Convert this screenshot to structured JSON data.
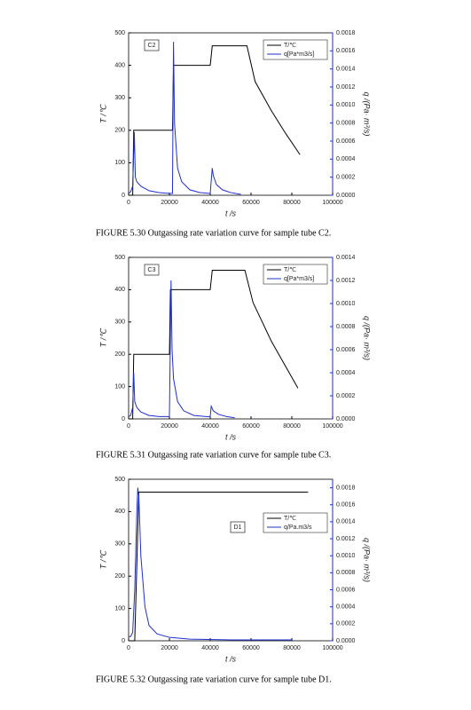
{
  "chart_data": [
    {
      "type": "line",
      "annotation": "C2",
      "xlabel": "t /s",
      "ylabel": "T /℃",
      "y2label": "q /(Pa· m³/s)",
      "caption": "FIGURE 5.30    Outgassing rate variation curve for sample tube C2.",
      "xlim": [
        0,
        100000
      ],
      "xticks": [
        0,
        20000,
        40000,
        60000,
        80000,
        100000
      ],
      "ylim": [
        0,
        500
      ],
      "yticks": [
        0,
        100,
        200,
        300,
        400,
        500
      ],
      "y2lim": [
        0,
        0.0018
      ],
      "y2ticks": [
        {
          "value": 0,
          "label": "0.0000"
        },
        {
          "value": 0.0002,
          "label": "0.0002"
        },
        {
          "value": 0.0004,
          "label": "0.0004"
        },
        {
          "value": 0.0006,
          "label": "0.0006"
        },
        {
          "value": 0.0008,
          "label": "0.0008"
        },
        {
          "value": 0.001,
          "label": "0.0010"
        },
        {
          "value": 0.0012,
          "label": "0.0012"
        },
        {
          "value": 0.0014,
          "label": "0.0014"
        },
        {
          "value": 0.0016,
          "label": "0.0016"
        },
        {
          "value": 0.0018,
          "label": "0.0018"
        }
      ],
      "legend": "upper right",
      "series": [
        {
          "name": "T/℃",
          "color": "#000000",
          "x": [
            0,
            2000,
            2500,
            21500,
            22000,
            40000,
            41000,
            58000,
            62000,
            70000,
            77000,
            84000
          ],
          "values": [
            0,
            0,
            200,
            200,
            400,
            400,
            460,
            460,
            350,
            260,
            190,
            125
          ]
        },
        {
          "name": "q[Pa*m3/s]",
          "color": "#1f2fd0",
          "axis": "y2",
          "x": [
            0,
            1000,
            2000,
            2800,
            3300,
            4000,
            6000,
            10000,
            15000,
            20000,
            21500,
            22000,
            22500,
            24000,
            26000,
            30000,
            35000,
            40000,
            41000,
            41500,
            43000,
            46000,
            50000,
            55000
          ],
          "values": [
            2e-05,
            4e-05,
            0.0001,
            0.0007,
            0.0002,
            0.00015,
            0.0001,
            5e-05,
            3e-05,
            2e-05,
            2e-05,
            0.0017,
            0.0008,
            0.0003,
            0.00015,
            6e-05,
            3e-05,
            2e-05,
            0.0003,
            0.00022,
            0.00012,
            6e-05,
            3e-05,
            1e-05
          ]
        }
      ]
    },
    {
      "type": "line",
      "annotation": "C3",
      "xlabel": "t /s",
      "ylabel": "T /℃",
      "y2label": "q /(Pa· m³/s)",
      "caption": "FIGURE 5.31    Outgassing rate variation curve for sample tube C3.",
      "xlim": [
        0,
        100000
      ],
      "xticks": [
        0,
        20000,
        40000,
        60000,
        80000,
        100000
      ],
      "ylim": [
        0,
        500
      ],
      "yticks": [
        0,
        100,
        200,
        300,
        400,
        500
      ],
      "y2lim": [
        0,
        0.0014
      ],
      "y2ticks": [
        {
          "value": 0,
          "label": "0.0000"
        },
        {
          "value": 0.0002,
          "label": "0.0002"
        },
        {
          "value": 0.0004,
          "label": "0.0004"
        },
        {
          "value": 0.0006,
          "label": "0.0006"
        },
        {
          "value": 0.0008,
          "label": "0.0008"
        },
        {
          "value": 0.001,
          "label": "0.0010"
        },
        {
          "value": 0.0012,
          "label": "0.0012"
        },
        {
          "value": 0.0014,
          "label": "0.0014"
        }
      ],
      "legend": "upper right",
      "series": [
        {
          "name": "T/℃",
          "color": "#000000",
          "x": [
            0,
            2000,
            2500,
            20000,
            20500,
            40000,
            41000,
            57000,
            61000,
            70000,
            83000
          ],
          "values": [
            0,
            0,
            200,
            200,
            400,
            400,
            460,
            460,
            360,
            240,
            95
          ]
        },
        {
          "name": "q[Pa*m3/s]",
          "color": "#1f2fd0",
          "axis": "y2",
          "x": [
            0,
            1000,
            2000,
            2500,
            3000,
            4000,
            6000,
            10000,
            15000,
            20000,
            20800,
            21300,
            22000,
            24000,
            27000,
            32000,
            38000,
            40000,
            40500,
            41500,
            44000,
            48000,
            52000
          ],
          "values": [
            2e-05,
            3e-05,
            0.0001,
            0.0004,
            0.00015,
            0.0001,
            6e-05,
            3e-05,
            2e-05,
            2e-05,
            0.0012,
            0.0006,
            0.00035,
            0.00015,
            7e-05,
            3e-05,
            2e-05,
            2e-05,
            0.00011,
            7e-05,
            4e-05,
            2e-05,
            1e-05
          ]
        }
      ]
    },
    {
      "type": "line",
      "annotation": "D1",
      "xlabel": "t /s",
      "ylabel": "T /℃",
      "y2label": "q /(Pa· m³/s)",
      "caption": "FIGURE 5.32    Outgassing rate variation curve for sample tube D1.",
      "xlim": [
        0,
        100000
      ],
      "xticks": [
        0,
        20000,
        40000,
        60000,
        80000,
        100000
      ],
      "ylim": [
        0,
        500
      ],
      "yticks": [
        0,
        100,
        200,
        300,
        400,
        500
      ],
      "y2lim": [
        0,
        0.0019
      ],
      "y2ticks": [
        {
          "value": 0,
          "label": "0.0000"
        },
        {
          "value": 0.0002,
          "label": "0.0002"
        },
        {
          "value": 0.0004,
          "label": "0.0004"
        },
        {
          "value": 0.0006,
          "label": "0.0006"
        },
        {
          "value": 0.0008,
          "label": "0.0008"
        },
        {
          "value": 0.001,
          "label": "0.0010"
        },
        {
          "value": 0.0012,
          "label": "0.0012"
        },
        {
          "value": 0.0014,
          "label": "0.0014"
        },
        {
          "value": 0.0016,
          "label": "0.0016"
        },
        {
          "value": 0.0018,
          "label": "0.0018"
        }
      ],
      "legend": "center right",
      "series": [
        {
          "name": "T/℃",
          "color": "#000000",
          "x": [
            0,
            3000,
            5000,
            88000
          ],
          "values": [
            0,
            0,
            460,
            460
          ]
        },
        {
          "name": "q/Pa.m3/s",
          "color": "#1f2fd0",
          "axis": "y2",
          "x": [
            0,
            1000,
            2000,
            3000,
            4000,
            4500,
            5000,
            6000,
            8000,
            10000,
            14000,
            20000,
            30000,
            50000,
            80000
          ],
          "values": [
            5e-05,
            5e-05,
            0.0001,
            0.0006,
            0.0015,
            0.0018,
            0.0017,
            0.001,
            0.0004,
            0.00018,
            8e-05,
            4e-05,
            2e-05,
            1e-05,
            1e-05
          ]
        }
      ]
    }
  ]
}
